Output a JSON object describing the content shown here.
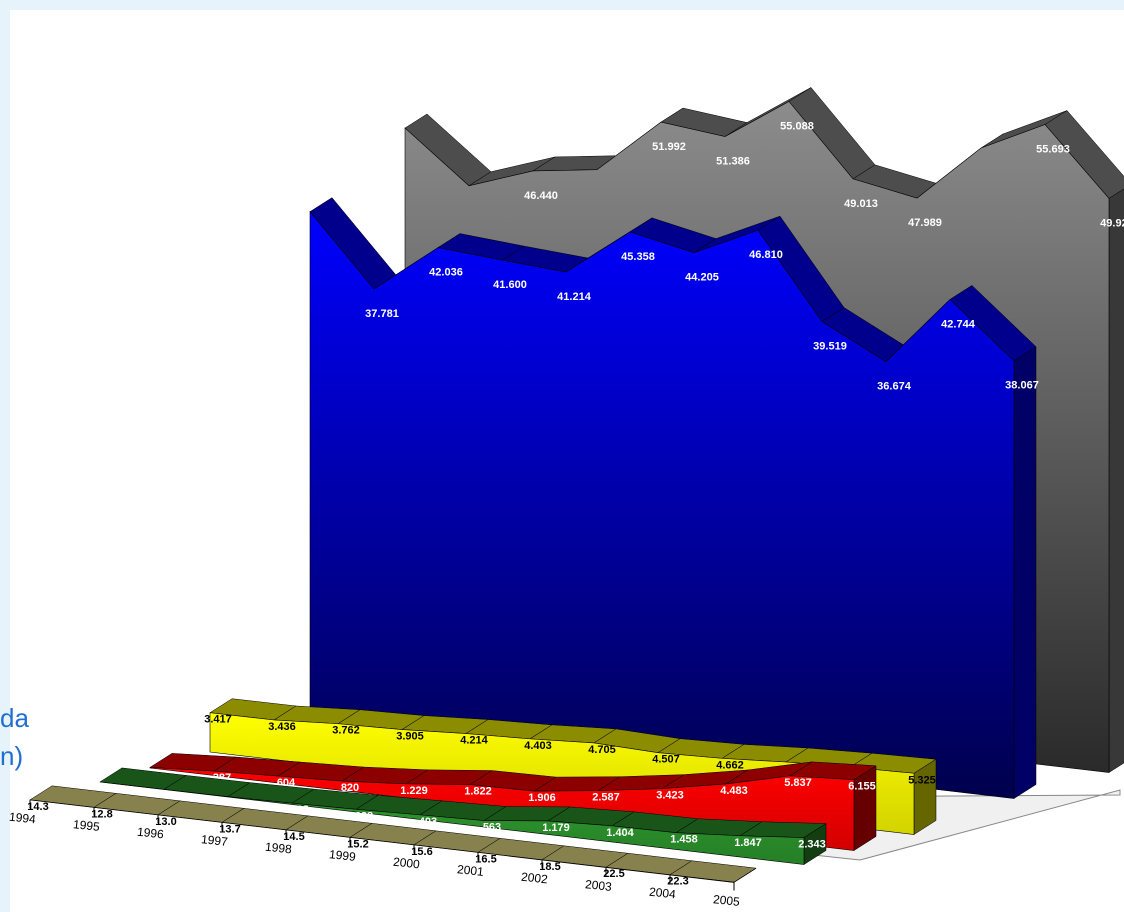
{
  "chart_data": {
    "type": "area3d",
    "x": [
      1994,
      1995,
      1996,
      1997,
      1998,
      1999,
      2000,
      2001,
      2002,
      2003,
      2004,
      2005
    ],
    "ylim": [
      0,
      60000
    ],
    "side_texts": [
      "da",
      "n)"
    ],
    "series": [
      {
        "color": "#8c8c8c",
        "values": [
          48868,
          44500,
          46440,
          47200,
          51992,
          51386,
          55088,
          49013,
          47989,
          53000,
          55693,
          49920
        ],
        "value_labels": [
          null,
          null,
          "46.440",
          null,
          "51.992",
          "51.386",
          "55.088",
          "49.013",
          "47.989",
          null,
          "55.693",
          "49.920"
        ]
      },
      {
        "color": "#0000ff",
        "values": [
          43858,
          37781,
          42036,
          41600,
          41214,
          45358,
          44205,
          46810,
          39519,
          36674,
          42744,
          38067
        ],
        "value_labels": [
          null,
          "37.781",
          "42.036",
          "41.600",
          "41.214",
          "45.358",
          "44.205",
          "46.810",
          "39.519",
          "36.674",
          "42.744",
          "38.067"
        ]
      },
      {
        "color": "#ffff00",
        "values": [
          3417,
          3436,
          3762,
          3905,
          4214,
          4403,
          4705,
          4507,
          4662,
          5000,
          5200,
          5325
        ],
        "value_labels": [
          "3.417",
          "3.436",
          "3.762",
          "3.905",
          "4.214",
          "4.403",
          "4.705",
          "4.507",
          "4.662",
          null,
          null,
          "5.325"
        ]
      },
      {
        "color": "#ff0000",
        "values": [
          55,
          387,
          604,
          820,
          1229,
          1822,
          1906,
          2587,
          3423,
          4483,
          5837,
          6155
        ],
        "value_labels": [
          "55",
          "387",
          "604",
          "820",
          "1.229",
          "1.822",
          "1.906",
          "2.587",
          "3.423",
          "4.483",
          "5.837",
          "6.155"
        ]
      },
      {
        "color": "#2e9a2e",
        "values": [
          6,
          10,
          33,
          118,
          232,
          403,
          563,
          1179,
          1404,
          1458,
          1847,
          2343
        ],
        "value_labels": [
          "6",
          "10",
          "33",
          "118",
          "232",
          "403",
          "563",
          "1.179",
          "1.404",
          "1.458",
          "1.847",
          "2.343"
        ]
      },
      {
        "color": "#f3ea8c",
        "values": [
          14.3,
          12.8,
          13.0,
          13.7,
          14.5,
          15.2,
          15.6,
          16.5,
          18.5,
          22.5,
          22.3,
          31.0
        ],
        "value_labels": [
          "14.3",
          "12.8",
          "13.0",
          "13.7",
          "14.5",
          "15.2",
          "15.6",
          "16.5",
          "18.5",
          "22.5",
          "22.3",
          null
        ]
      }
    ]
  }
}
